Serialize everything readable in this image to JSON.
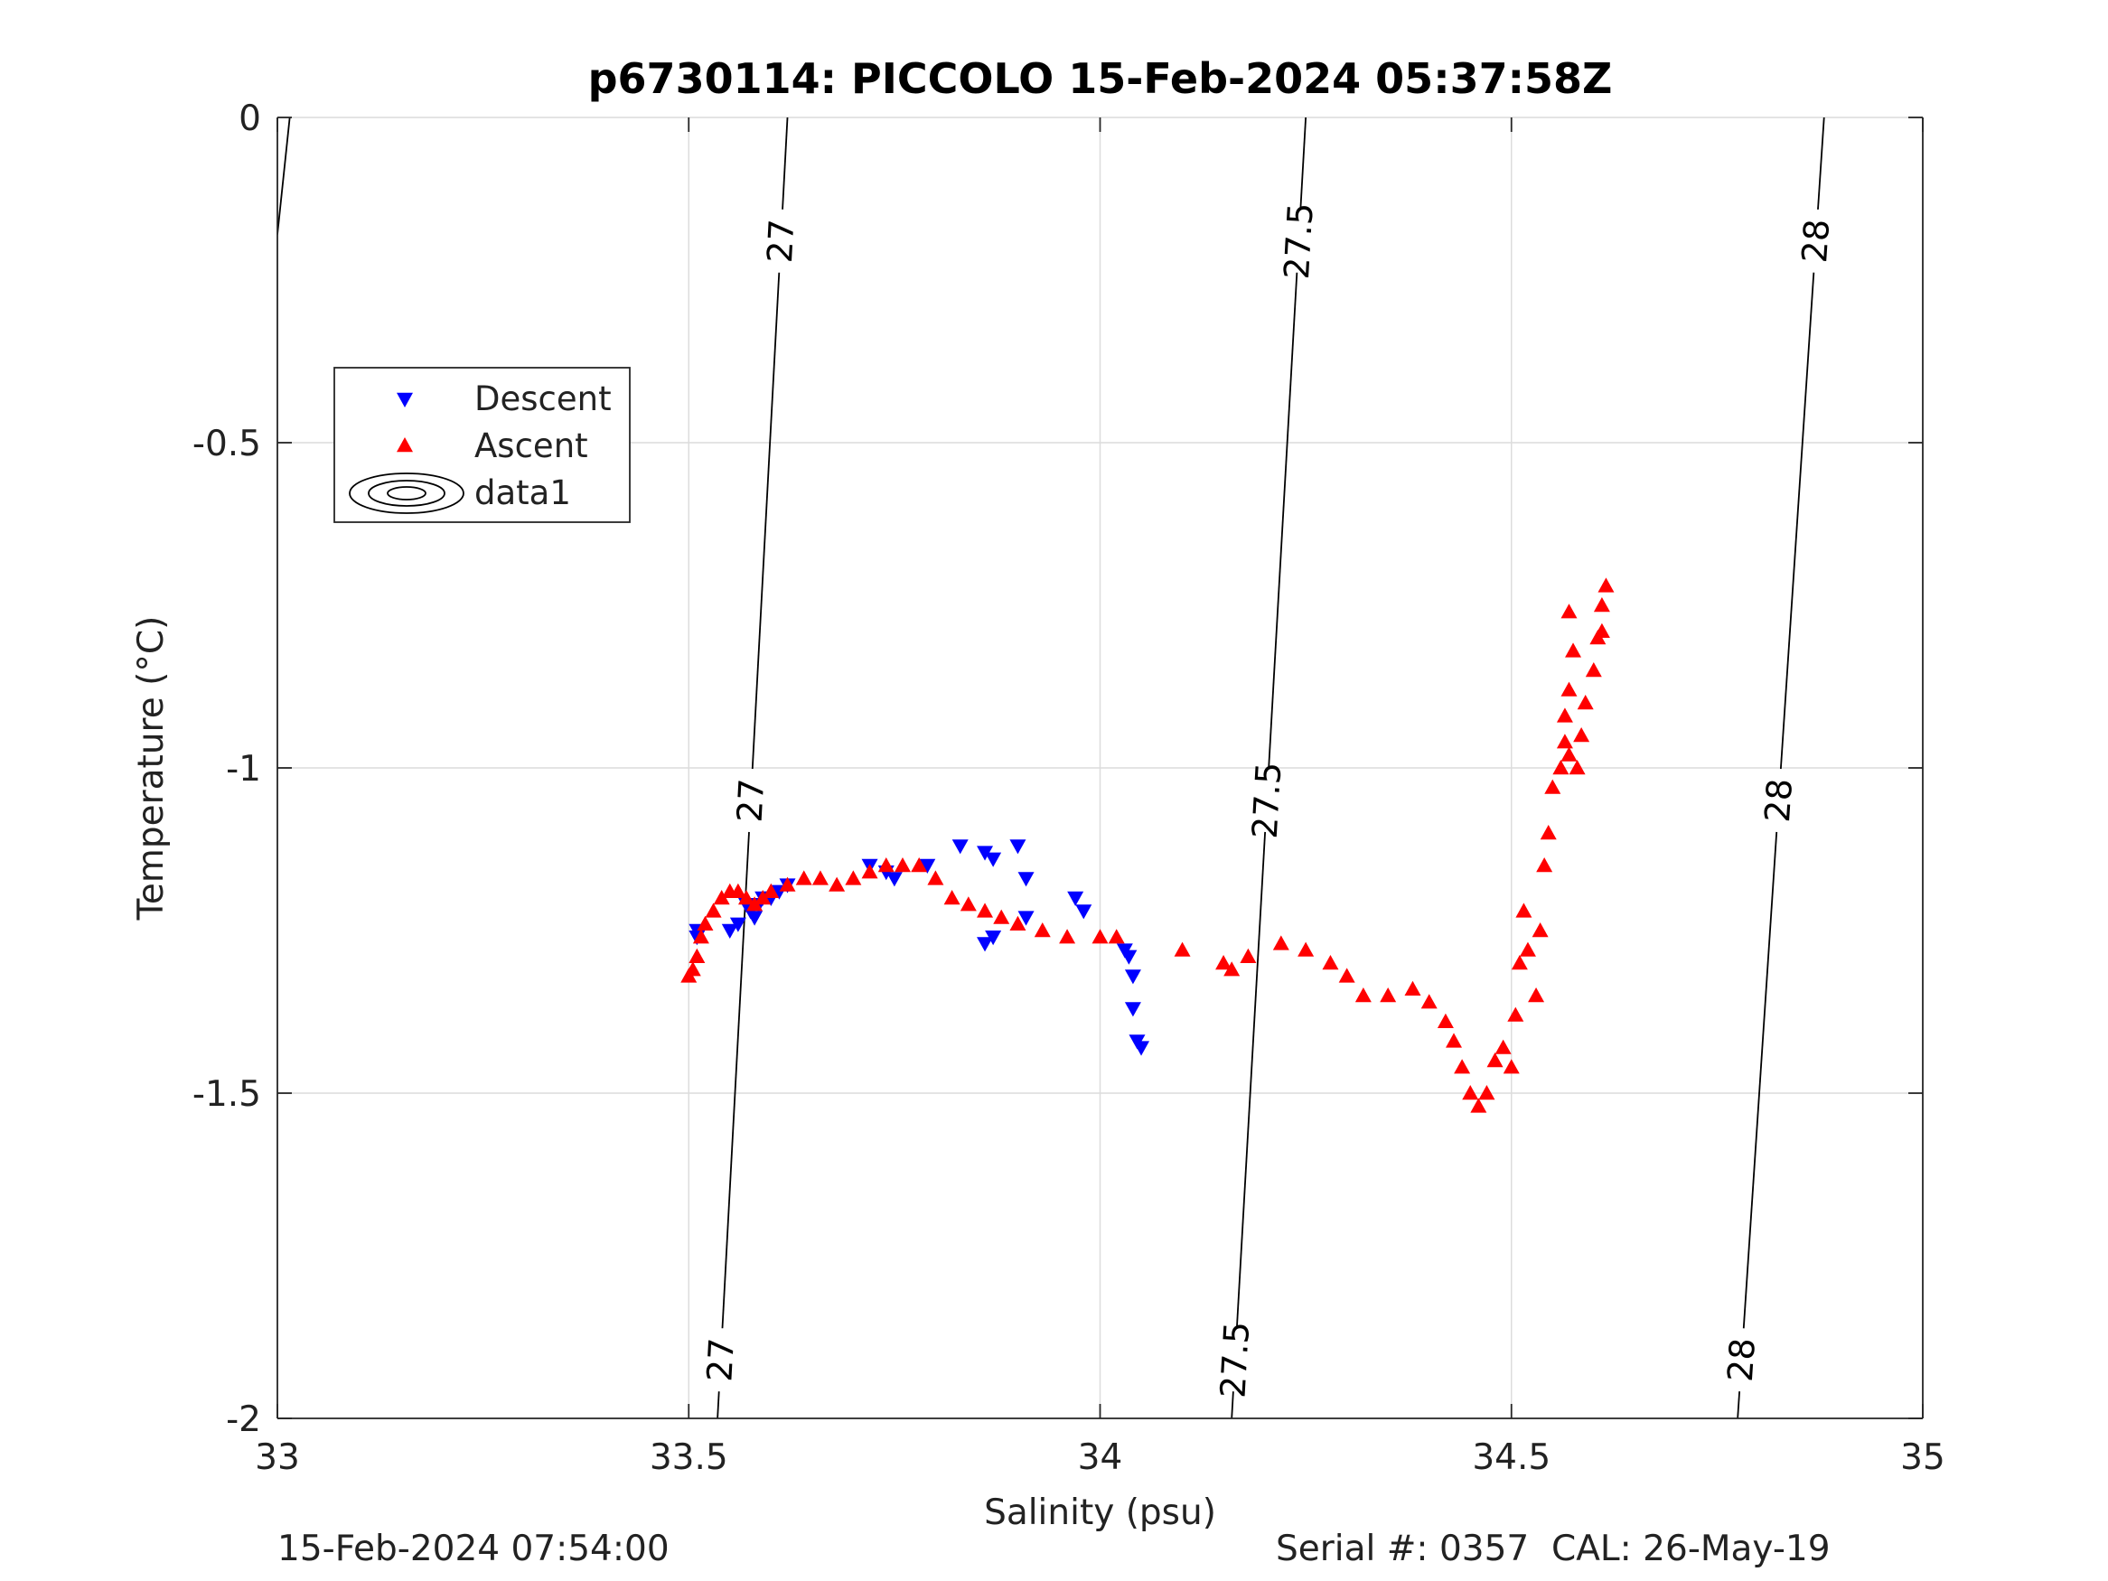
{
  "chart_data": {
    "type": "scatter",
    "title": "p6730114: PICCOLO 15-Feb-2024 05:37:58Z",
    "xlabel": "Salinity (psu)",
    "ylabel": "Temperature (°C)",
    "xlim": [
      33,
      35
    ],
    "ylim": [
      -2,
      0
    ],
    "xticks": [
      "33",
      "33.5",
      "34",
      "34.5",
      "35"
    ],
    "yticks": [
      "0",
      "-0.5",
      "-1",
      "-1.5",
      "-2"
    ],
    "grid": true,
    "legend_position": "upper-left",
    "legend": [
      "Descent",
      "Ascent",
      "data1"
    ],
    "series": [
      {
        "name": "Descent",
        "marker": "triangle-down",
        "color": "#0000ff",
        "points": [
          [
            33.51,
            -1.25
          ],
          [
            33.51,
            -1.26
          ],
          [
            33.55,
            -1.25
          ],
          [
            33.56,
            -1.24
          ],
          [
            33.57,
            -1.21
          ],
          [
            33.575,
            -1.22
          ],
          [
            33.58,
            -1.23
          ],
          [
            33.585,
            -1.21
          ],
          [
            33.59,
            -1.2
          ],
          [
            33.6,
            -1.2
          ],
          [
            33.61,
            -1.19
          ],
          [
            33.62,
            -1.18
          ],
          [
            33.72,
            -1.15
          ],
          [
            33.74,
            -1.16
          ],
          [
            33.75,
            -1.17
          ],
          [
            33.79,
            -1.15
          ],
          [
            33.83,
            -1.12
          ],
          [
            33.86,
            -1.13
          ],
          [
            33.87,
            -1.14
          ],
          [
            33.86,
            -1.27
          ],
          [
            33.87,
            -1.26
          ],
          [
            33.9,
            -1.12
          ],
          [
            33.91,
            -1.17
          ],
          [
            33.91,
            -1.23
          ],
          [
            33.97,
            -1.2
          ],
          [
            33.98,
            -1.22
          ],
          [
            34.03,
            -1.28
          ],
          [
            34.035,
            -1.29
          ],
          [
            34.04,
            -1.32
          ],
          [
            34.04,
            -1.37
          ],
          [
            34.045,
            -1.42
          ],
          [
            34.05,
            -1.43
          ]
        ]
      },
      {
        "name": "Ascent",
        "marker": "triangle-up",
        "color": "#ff0000",
        "points": [
          [
            33.5,
            -1.32
          ],
          [
            33.505,
            -1.31
          ],
          [
            33.51,
            -1.29
          ],
          [
            33.515,
            -1.26
          ],
          [
            33.52,
            -1.24
          ],
          [
            33.53,
            -1.22
          ],
          [
            33.54,
            -1.2
          ],
          [
            33.55,
            -1.19
          ],
          [
            33.56,
            -1.19
          ],
          [
            33.57,
            -1.2
          ],
          [
            33.58,
            -1.21
          ],
          [
            33.59,
            -1.2
          ],
          [
            33.6,
            -1.19
          ],
          [
            33.62,
            -1.18
          ],
          [
            33.64,
            -1.17
          ],
          [
            33.66,
            -1.17
          ],
          [
            33.68,
            -1.18
          ],
          [
            33.7,
            -1.17
          ],
          [
            33.72,
            -1.16
          ],
          [
            33.74,
            -1.15
          ],
          [
            33.76,
            -1.15
          ],
          [
            33.78,
            -1.15
          ],
          [
            33.8,
            -1.17
          ],
          [
            33.82,
            -1.2
          ],
          [
            33.84,
            -1.21
          ],
          [
            33.86,
            -1.22
          ],
          [
            33.88,
            -1.23
          ],
          [
            33.9,
            -1.24
          ],
          [
            33.93,
            -1.25
          ],
          [
            33.96,
            -1.26
          ],
          [
            34.0,
            -1.26
          ],
          [
            34.02,
            -1.26
          ],
          [
            34.1,
            -1.28
          ],
          [
            34.15,
            -1.3
          ],
          [
            34.16,
            -1.31
          ],
          [
            34.18,
            -1.29
          ],
          [
            34.22,
            -1.27
          ],
          [
            34.25,
            -1.28
          ],
          [
            34.28,
            -1.3
          ],
          [
            34.3,
            -1.32
          ],
          [
            34.32,
            -1.35
          ],
          [
            34.35,
            -1.35
          ],
          [
            34.38,
            -1.34
          ],
          [
            34.4,
            -1.36
          ],
          [
            34.42,
            -1.39
          ],
          [
            34.43,
            -1.42
          ],
          [
            34.44,
            -1.46
          ],
          [
            34.45,
            -1.5
          ],
          [
            34.46,
            -1.52
          ],
          [
            34.47,
            -1.5
          ],
          [
            34.48,
            -1.45
          ],
          [
            34.49,
            -1.43
          ],
          [
            34.5,
            -1.46
          ],
          [
            34.505,
            -1.38
          ],
          [
            34.51,
            -1.3
          ],
          [
            34.515,
            -1.22
          ],
          [
            34.52,
            -1.28
          ],
          [
            34.53,
            -1.35
          ],
          [
            34.535,
            -1.25
          ],
          [
            34.54,
            -1.15
          ],
          [
            34.545,
            -1.1
          ],
          [
            34.55,
            -1.03
          ],
          [
            34.56,
            -1.0
          ],
          [
            34.565,
            -0.96
          ],
          [
            34.57,
            -0.98
          ],
          [
            34.58,
            -1.0
          ],
          [
            34.585,
            -0.95
          ],
          [
            34.59,
            -0.9
          ],
          [
            34.6,
            -0.85
          ],
          [
            34.605,
            -0.8
          ],
          [
            34.61,
            -0.75
          ],
          [
            34.615,
            -0.72
          ],
          [
            34.61,
            -0.79
          ],
          [
            34.57,
            -0.76
          ],
          [
            34.575,
            -0.82
          ],
          [
            34.57,
            -0.88
          ],
          [
            34.565,
            -0.92
          ]
        ]
      },
      {
        "name": "data1",
        "type": "contour",
        "color": "#000000",
        "levels": [
          {
            "label": "27",
            "line": [
              [
                33.62,
                0
              ],
              [
                33.535,
                -2
              ]
            ]
          },
          {
            "label": "27.5",
            "line": [
              [
                34.25,
                0
              ],
              [
                34.16,
                -2
              ]
            ]
          },
          {
            "label": "28",
            "line": [
              [
                34.88,
                0
              ],
              [
                34.775,
                -2
              ]
            ]
          }
        ]
      }
    ]
  },
  "footer": {
    "timestamp": "15-Feb-2024 07:54:00",
    "serial_cal": "Serial #: 0357  CAL: 26-May-19"
  }
}
